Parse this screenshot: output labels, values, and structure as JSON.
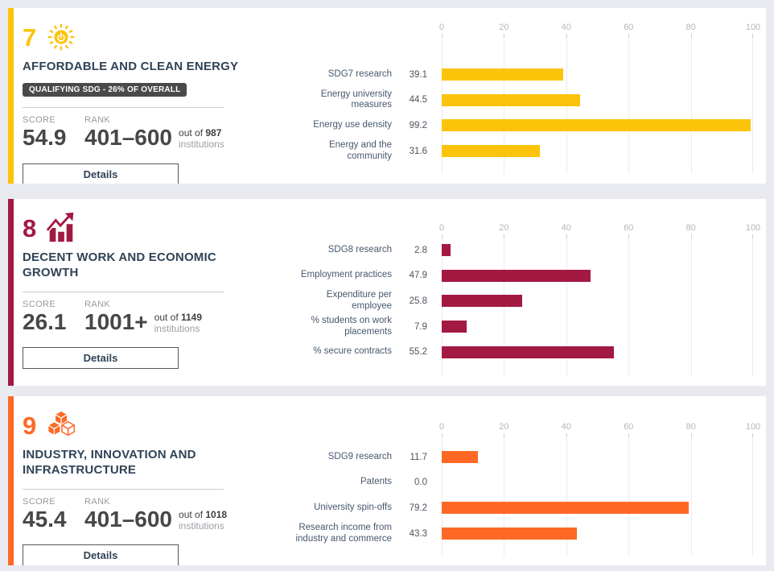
{
  "page": {
    "background": "#e8eaef"
  },
  "axis_ticks": [
    "0",
    "20",
    "40",
    "60",
    "80",
    "100"
  ],
  "cards": [
    {
      "number": "7",
      "icon": "sun-energy-icon",
      "color": "#fcc30b",
      "title": "AFFORDABLE AND CLEAN ENERGY",
      "badge": "QUALIFYING SDG - 26% OF OVERALL",
      "score_label": "SCORE",
      "score": "54.9",
      "rank_label": "RANK",
      "rank": "401–600",
      "out_of": "out of ",
      "institutions_total": "987",
      "institutions_label": "institutions",
      "details_label": "Details",
      "rows": [
        {
          "label": "SDG7 research",
          "value": "39.1"
        },
        {
          "label": "Energy university measures",
          "value": "44.5"
        },
        {
          "label": "Energy use density",
          "value": "99.2"
        },
        {
          "label": "Energy and the community",
          "value": "31.6"
        }
      ]
    },
    {
      "number": "8",
      "icon": "economic-growth-icon",
      "color": "#a21942",
      "title": "DECENT WORK AND ECONOMIC GROWTH",
      "score_label": "SCORE",
      "score": "26.1",
      "rank_label": "RANK",
      "rank": "1001+",
      "out_of": "out of ",
      "institutions_total": "1149",
      "institutions_label": "institutions",
      "details_label": "Details",
      "rows": [
        {
          "label": "SDG8 research",
          "value": "2.8"
        },
        {
          "label": "Employment practices",
          "value": "47.9"
        },
        {
          "label": "Expenditure per employee",
          "value": "25.8"
        },
        {
          "label": "% students on work placements",
          "value": "7.9"
        },
        {
          "label": "% secure contracts",
          "value": "55.2"
        }
      ]
    },
    {
      "number": "9",
      "icon": "industry-cubes-icon",
      "color": "#fd6925",
      "title": "INDUSTRY, INNOVATION AND INFRASTRUCTURE",
      "score_label": "SCORE",
      "score": "45.4",
      "rank_label": "RANK",
      "rank": "401–600",
      "out_of": "out of ",
      "institutions_total": "1018",
      "institutions_label": "institutions",
      "details_label": "Details",
      "rows": [
        {
          "label": "SDG9 research",
          "value": "11.7"
        },
        {
          "label": "Patents",
          "value": "0.0"
        },
        {
          "label": "University spin-offs",
          "value": "79.2"
        },
        {
          "label": "Research income from industry and commerce",
          "value": "43.3"
        }
      ]
    }
  ],
  "chart_data": [
    {
      "type": "bar",
      "orientation": "horizontal",
      "title": "SDG 7 Affordable and Clean Energy indicator scores",
      "categories": [
        "SDG7 research",
        "Energy university measures",
        "Energy use density",
        "Energy and the community"
      ],
      "values": [
        39.1,
        44.5,
        99.2,
        31.6
      ],
      "xlim": [
        0,
        100
      ],
      "xticks": [
        0,
        20,
        40,
        60,
        80,
        100
      ],
      "grid": true,
      "color": "#fcc30b"
    },
    {
      "type": "bar",
      "orientation": "horizontal",
      "title": "SDG 8 Decent Work and Economic Growth indicator scores",
      "categories": [
        "SDG8 research",
        "Employment practices",
        "Expenditure per employee",
        "% students on work placements",
        "% secure contracts"
      ],
      "values": [
        2.8,
        47.9,
        25.8,
        7.9,
        55.2
      ],
      "xlim": [
        0,
        100
      ],
      "xticks": [
        0,
        20,
        40,
        60,
        80,
        100
      ],
      "grid": true,
      "color": "#a21942"
    },
    {
      "type": "bar",
      "orientation": "horizontal",
      "title": "SDG 9 Industry, Innovation and Infrastructure indicator scores",
      "categories": [
        "SDG9 research",
        "Patents",
        "University spin-offs",
        "Research income from industry and commerce"
      ],
      "values": [
        11.7,
        0.0,
        79.2,
        43.3
      ],
      "xlim": [
        0,
        100
      ],
      "xticks": [
        0,
        20,
        40,
        60,
        80,
        100
      ],
      "grid": true,
      "color": "#fd6925"
    }
  ]
}
